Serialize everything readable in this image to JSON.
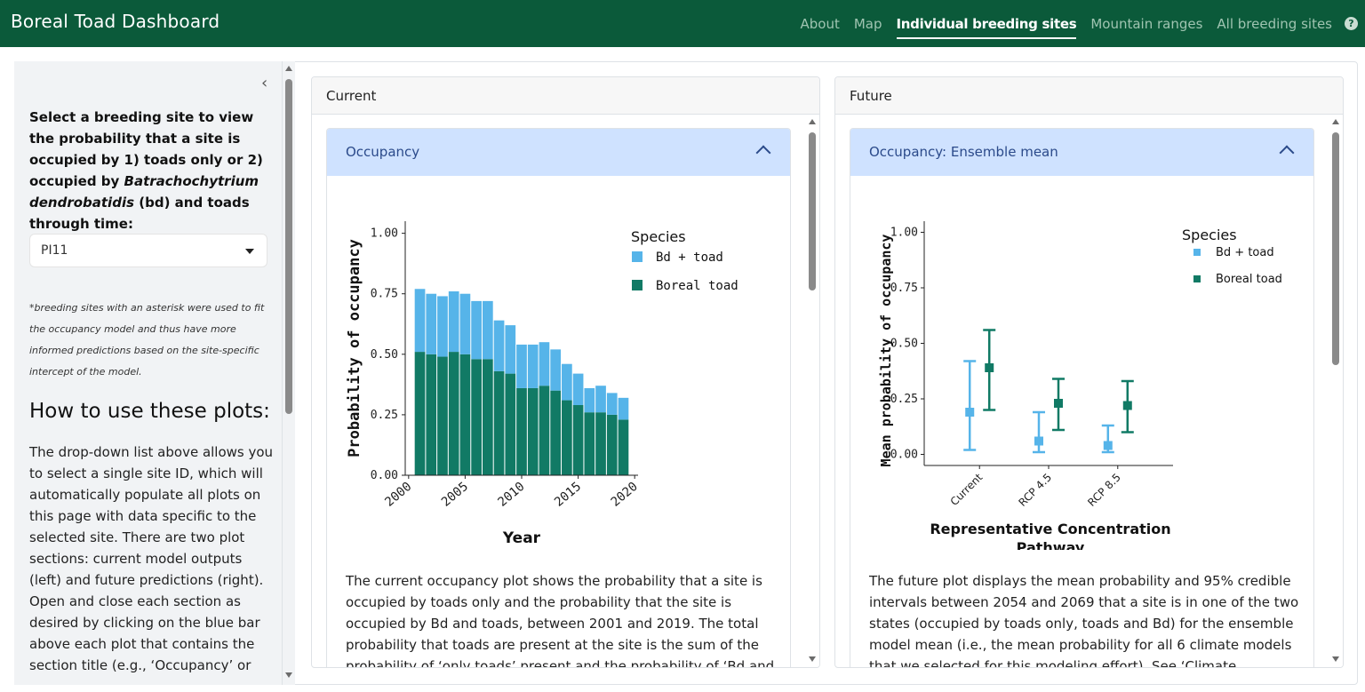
{
  "app_title": "Boreal Toad Dashboard",
  "nav": [
    {
      "label": "About"
    },
    {
      "label": "Map"
    },
    {
      "label": "Individual breeding sites"
    },
    {
      "label": "Mountain ranges"
    },
    {
      "label": "All breeding sites"
    }
  ],
  "nav_active_index": 2,
  "sidebar": {
    "intro_a": "Select a breeding site to view the probability that a site is occupied by 1) toads only or 2) occupied by ",
    "intro_italic": "Batrachochytrium dendrobatidis",
    "intro_b": " (bd) and toads through time:",
    "site_select_value": "PI11",
    "note": "*breeding sites with an asterisk were used to fit the occupancy model and thus have more informed predictions based on the site-specific intercept of the model.",
    "heading": "How to use these plots:",
    "body": "The drop-down list above allows you to select a single site ID, which will automatically populate all plots on this page with data specific to the selected site. There are two plot sections: current model outputs (left) and future predictions (right). Open and close each section as desired by clicking on the blue bar above each plot that contains the section title (e.g., ‘Occupancy’ or"
  },
  "current": {
    "card_title": "Current",
    "accordion_title": "Occupancy",
    "description": "The current occupancy plot shows the probability that a site is occupied by toads only and the probability that the site is occupied by Bd and toads, between 2001 and 2019. The total probability that toads are present at the site is the sum of the probability of ‘only toads’ present and the probability of ‘Bd and"
  },
  "future": {
    "card_title": "Future",
    "accordion_title": "Occupancy: Ensemble mean",
    "description": "The future plot displays the mean probability and 95% credible intervals between 2054 and 2069 that a site is in one of the two states (occupied by toads only, toads and Bd) for the ensemble model mean (i.e., the mean probability for all 6 climate models that we selected for this modeling effort). See ‘Climate"
  },
  "colors": {
    "bd_toad": "#56b4e9",
    "boreal_toad": "#117a65",
    "nav_bg": "#0b5a3a",
    "accordion": "#cfe2ff"
  },
  "chart_data": [
    {
      "type": "bar",
      "stacked": true,
      "xlabel": "Year",
      "ylabel": "Probability of occupancy",
      "ylim": [
        0,
        1.05
      ],
      "yticks": [
        "0.00",
        "0.25",
        "0.50",
        "0.75",
        "1.00"
      ],
      "xticks": [
        "2000",
        "2005",
        "2010",
        "2015",
        "2020"
      ],
      "legend_title": "Species",
      "legend_position": "top-right",
      "x": [
        2001,
        2002,
        2003,
        2004,
        2005,
        2006,
        2007,
        2008,
        2009,
        2010,
        2011,
        2012,
        2013,
        2014,
        2015,
        2016,
        2017,
        2018,
        2019
      ],
      "series": [
        {
          "name": "Boreal toad",
          "values": [
            0.51,
            0.5,
            0.49,
            0.51,
            0.5,
            0.48,
            0.48,
            0.43,
            0.42,
            0.36,
            0.36,
            0.37,
            0.35,
            0.31,
            0.29,
            0.26,
            0.26,
            0.25,
            0.23
          ]
        },
        {
          "name": "Bd + toad",
          "values": [
            0.26,
            0.25,
            0.25,
            0.25,
            0.25,
            0.24,
            0.24,
            0.21,
            0.2,
            0.18,
            0.18,
            0.18,
            0.17,
            0.15,
            0.13,
            0.1,
            0.11,
            0.09,
            0.09
          ]
        }
      ]
    },
    {
      "type": "scatter",
      "error_bars": true,
      "xlabel": "Representative Concentration Pathway",
      "ylabel": "Mean probability of occupancy",
      "ylim": [
        -0.05,
        1.05
      ],
      "yticks": [
        "0.00",
        "0.25",
        "0.50",
        "0.75",
        "1.00"
      ],
      "categories": [
        "Current",
        "RCP 4.5",
        "RCP 8.5"
      ],
      "legend_title": "Species",
      "legend_position": "top-right",
      "series": [
        {
          "name": "Bd + toad",
          "values": [
            0.19,
            0.06,
            0.04
          ],
          "lower": [
            0.02,
            0.01,
            0.01
          ],
          "upper": [
            0.42,
            0.19,
            0.13
          ]
        },
        {
          "name": "Boreal toad",
          "values": [
            0.39,
            0.23,
            0.22
          ],
          "lower": [
            0.2,
            0.11,
            0.1
          ],
          "upper": [
            0.56,
            0.34,
            0.33
          ]
        }
      ]
    }
  ]
}
